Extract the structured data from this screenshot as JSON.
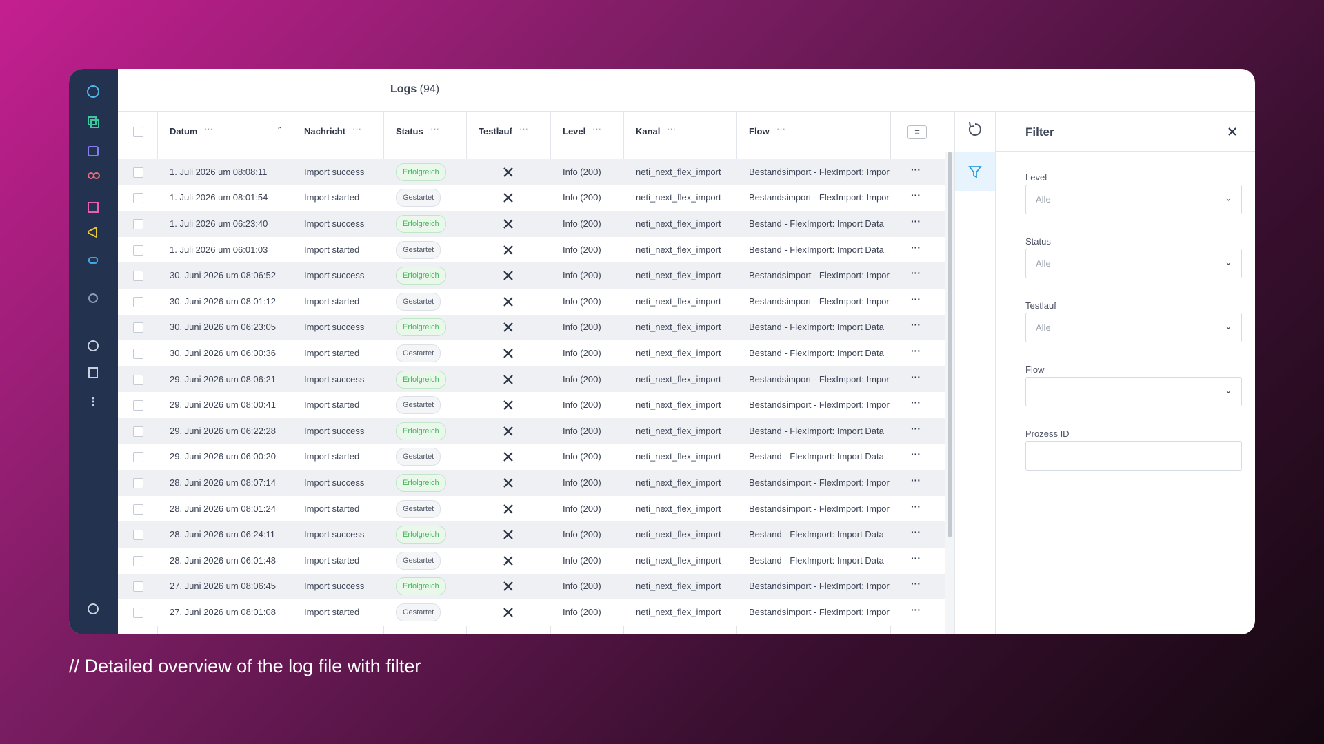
{
  "header": {
    "title": "Logs",
    "count": "(94)"
  },
  "columns": [
    "Datum",
    "Nachricht",
    "Status",
    "Testlauf",
    "Level",
    "Kanal",
    "Flow"
  ],
  "rows": [
    {
      "datum": "1. Juli 2026 um 08:08:11",
      "nachricht": "Import success",
      "status": "Erfolgreich",
      "level": "Info (200)",
      "kanal": "neti_next_flex_import",
      "flow": "Bestandsimport - FlexImport: Import Data"
    },
    {
      "datum": "1. Juli 2026 um 08:01:54",
      "nachricht": "Import started",
      "status": "Gestartet",
      "level": "Info (200)",
      "kanal": "neti_next_flex_import",
      "flow": "Bestandsimport - FlexImport: Import Data"
    },
    {
      "datum": "1. Juli 2026 um 06:23:40",
      "nachricht": "Import success",
      "status": "Erfolgreich",
      "level": "Info (200)",
      "kanal": "neti_next_flex_import",
      "flow": "Bestand - FlexImport: Import Data"
    },
    {
      "datum": "1. Juli 2026 um 06:01:03",
      "nachricht": "Import started",
      "status": "Gestartet",
      "level": "Info (200)",
      "kanal": "neti_next_flex_import",
      "flow": "Bestand - FlexImport: Import Data"
    },
    {
      "datum": "30. Juni 2026 um 08:06:52",
      "nachricht": "Import success",
      "status": "Erfolgreich",
      "level": "Info (200)",
      "kanal": "neti_next_flex_import",
      "flow": "Bestandsimport - FlexImport: Import Data"
    },
    {
      "datum": "30. Juni 2026 um 08:01:12",
      "nachricht": "Import started",
      "status": "Gestartet",
      "level": "Info (200)",
      "kanal": "neti_next_flex_import",
      "flow": "Bestandsimport - FlexImport: Import Data"
    },
    {
      "datum": "30. Juni 2026 um 06:23:05",
      "nachricht": "Import success",
      "status": "Erfolgreich",
      "level": "Info (200)",
      "kanal": "neti_next_flex_import",
      "flow": "Bestand - FlexImport: Import Data"
    },
    {
      "datum": "30. Juni 2026 um 06:00:36",
      "nachricht": "Import started",
      "status": "Gestartet",
      "level": "Info (200)",
      "kanal": "neti_next_flex_import",
      "flow": "Bestand - FlexImport: Import Data"
    },
    {
      "datum": "29. Juni 2026 um 08:06:21",
      "nachricht": "Import success",
      "status": "Erfolgreich",
      "level": "Info (200)",
      "kanal": "neti_next_flex_import",
      "flow": "Bestandsimport - FlexImport: Import Data"
    },
    {
      "datum": "29. Juni 2026 um 08:00:41",
      "nachricht": "Import started",
      "status": "Gestartet",
      "level": "Info (200)",
      "kanal": "neti_next_flex_import",
      "flow": "Bestandsimport - FlexImport: Import Data"
    },
    {
      "datum": "29. Juni 2026 um 06:22:28",
      "nachricht": "Import success",
      "status": "Erfolgreich",
      "level": "Info (200)",
      "kanal": "neti_next_flex_import",
      "flow": "Bestand - FlexImport: Import Data"
    },
    {
      "datum": "29. Juni 2026 um 06:00:20",
      "nachricht": "Import started",
      "status": "Gestartet",
      "level": "Info (200)",
      "kanal": "neti_next_flex_import",
      "flow": "Bestand - FlexImport: Import Data"
    },
    {
      "datum": "28. Juni 2026 um 08:07:14",
      "nachricht": "Import success",
      "status": "Erfolgreich",
      "level": "Info (200)",
      "kanal": "neti_next_flex_import",
      "flow": "Bestandsimport - FlexImport: Import Data"
    },
    {
      "datum": "28. Juni 2026 um 08:01:24",
      "nachricht": "Import started",
      "status": "Gestartet",
      "level": "Info (200)",
      "kanal": "neti_next_flex_import",
      "flow": "Bestandsimport - FlexImport: Import Data"
    },
    {
      "datum": "28. Juni 2026 um 06:24:11",
      "nachricht": "Import success",
      "status": "Erfolgreich",
      "level": "Info (200)",
      "kanal": "neti_next_flex_import",
      "flow": "Bestand - FlexImport: Import Data"
    },
    {
      "datum": "28. Juni 2026 um 06:01:48",
      "nachricht": "Import started",
      "status": "Gestartet",
      "level": "Info (200)",
      "kanal": "neti_next_flex_import",
      "flow": "Bestand - FlexImport: Import Data"
    },
    {
      "datum": "27. Juni 2026 um 08:06:45",
      "nachricht": "Import success",
      "status": "Erfolgreich",
      "level": "Info (200)",
      "kanal": "neti_next_flex_import",
      "flow": "Bestandsimport - FlexImport: Import Data"
    },
    {
      "datum": "27. Juni 2026 um 08:01:08",
      "nachricht": "Import started",
      "status": "Gestartet",
      "level": "Info (200)",
      "kanal": "neti_next_flex_import",
      "flow": "Bestandsimport - FlexImport: Import Data"
    }
  ],
  "filter": {
    "title": "Filter",
    "fields": [
      {
        "label": "Level",
        "placeholder": "Alle"
      },
      {
        "label": "Status",
        "placeholder": "Alle"
      },
      {
        "label": "Testlauf",
        "placeholder": "Alle"
      },
      {
        "label": "Flow"
      },
      {
        "label": "Prozess ID"
      }
    ]
  },
  "caption": "// Detailed overview of the log file with filter"
}
